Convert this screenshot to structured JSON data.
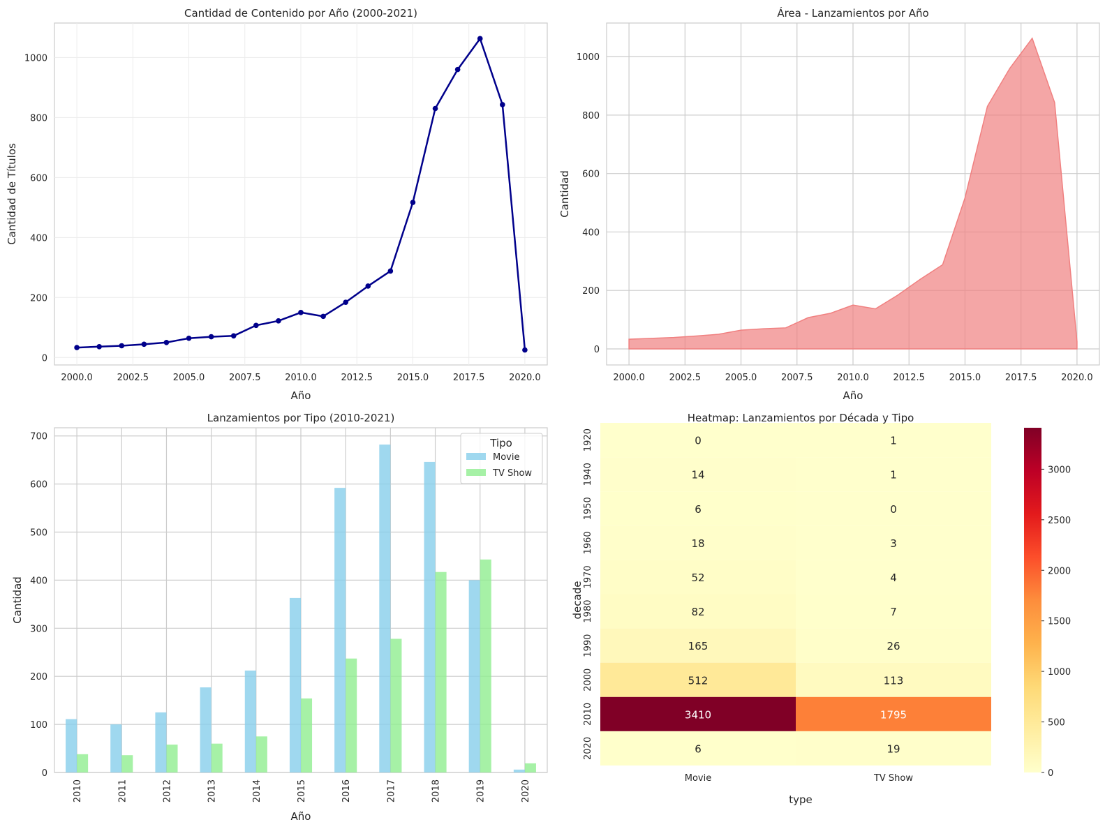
{
  "chart_data": [
    {
      "id": "line",
      "type": "line",
      "title": "Cantidad de Contenido por Año (2000-2021)",
      "xlabel": "Año",
      "ylabel": "Cantidad de Títulos",
      "xlim": [
        1999,
        2021
      ],
      "ylim": [
        -25,
        1115
      ],
      "xticks": [
        2000,
        2002.5,
        2005,
        2007.5,
        2010,
        2012.5,
        2015,
        2017.5,
        2020
      ],
      "xtick_labels": [
        "2000.0",
        "2002.5",
        "2005.0",
        "2007.5",
        "2010.0",
        "2012.5",
        "2015.0",
        "2017.5",
        "2020.0"
      ],
      "yticks": [
        0,
        200,
        400,
        600,
        800,
        1000
      ],
      "ytick_labels": [
        "0",
        "200",
        "400",
        "600",
        "800",
        "1000"
      ],
      "grid": true,
      "color": "#00008b",
      "x": [
        2000,
        2001,
        2002,
        2003,
        2004,
        2005,
        2006,
        2007,
        2008,
        2009,
        2010,
        2011,
        2012,
        2013,
        2014,
        2015,
        2016,
        2017,
        2018,
        2019,
        2020
      ],
      "y": [
        33,
        36,
        39,
        44,
        50,
        64,
        69,
        72,
        107,
        122,
        150,
        137,
        184,
        238,
        288,
        517,
        830,
        960,
        1063,
        843,
        25
      ]
    },
    {
      "id": "area",
      "type": "area",
      "title": "Área - Lanzamientos por Año",
      "xlabel": "Año",
      "ylabel": "Cantidad",
      "xlim": [
        1999,
        2021
      ],
      "ylim": [
        -55,
        1115
      ],
      "xticks": [
        2000,
        2002.5,
        2005,
        2007.5,
        2010,
        2012.5,
        2015,
        2017.5,
        2020
      ],
      "xtick_labels": [
        "2000.0",
        "2002.5",
        "2005.0",
        "2007.5",
        "2010.0",
        "2012.5",
        "2015.0",
        "2017.5",
        "2020.0"
      ],
      "yticks": [
        0,
        200,
        400,
        600,
        800,
        1000
      ],
      "ytick_labels": [
        "0",
        "200",
        "400",
        "600",
        "800",
        "1000"
      ],
      "grid": true,
      "color": "#f08080",
      "x": [
        2000,
        2001,
        2002,
        2003,
        2004,
        2005,
        2006,
        2007,
        2008,
        2009,
        2010,
        2011,
        2012,
        2013,
        2014,
        2015,
        2016,
        2017,
        2018,
        2019,
        2020
      ],
      "y": [
        33,
        36,
        39,
        44,
        50,
        64,
        69,
        72,
        107,
        122,
        150,
        137,
        184,
        238,
        288,
        517,
        830,
        960,
        1063,
        843,
        25
      ]
    },
    {
      "id": "bar",
      "type": "bar",
      "title": "Lanzamientos por Tipo (2010-2021)",
      "xlabel": "Año",
      "ylabel": "Cantidad",
      "ylim": [
        0,
        717
      ],
      "yticks": [
        0,
        100,
        200,
        300,
        400,
        500,
        600,
        700
      ],
      "ytick_labels": [
        "0",
        "100",
        "200",
        "300",
        "400",
        "500",
        "600",
        "700"
      ],
      "grid": true,
      "categories": [
        "2010",
        "2011",
        "2012",
        "2013",
        "2014",
        "2015",
        "2016",
        "2017",
        "2018",
        "2019",
        "2020"
      ],
      "legend": {
        "title": "Tipo",
        "placement": "top-right"
      },
      "series": [
        {
          "name": "Movie",
          "color": "#87ceeb",
          "values": [
            111,
            100,
            125,
            177,
            212,
            363,
            592,
            682,
            646,
            400,
            6
          ]
        },
        {
          "name": "TV Show",
          "color": "#90ee90",
          "values": [
            38,
            36,
            58,
            60,
            75,
            154,
            237,
            278,
            417,
            443,
            19
          ]
        }
      ]
    },
    {
      "id": "heatmap",
      "type": "heatmap",
      "title": "Heatmap: Lanzamientos por Década y Tipo",
      "xlabel": "type",
      "ylabel": "decade",
      "columns": [
        "Movie",
        "TV Show"
      ],
      "rows": [
        "1920",
        "1940",
        "1950",
        "1960",
        "1970",
        "1980",
        "1990",
        "2000",
        "2010",
        "2020"
      ],
      "values": [
        [
          0,
          1
        ],
        [
          14,
          1
        ],
        [
          6,
          0
        ],
        [
          18,
          3
        ],
        [
          52,
          4
        ],
        [
          82,
          7
        ],
        [
          165,
          26
        ],
        [
          512,
          113
        ],
        [
          3410,
          1795
        ],
        [
          6,
          19
        ]
      ],
      "colormap": "YlOrRd",
      "vmin": 0,
      "vmax": 3410,
      "colorbar_ticks": [
        0,
        500,
        1000,
        1500,
        2000,
        2500,
        3000
      ],
      "colorbar_tick_labels": [
        "0",
        "500",
        "1000",
        "1500",
        "2000",
        "2500",
        "3000"
      ]
    }
  ]
}
